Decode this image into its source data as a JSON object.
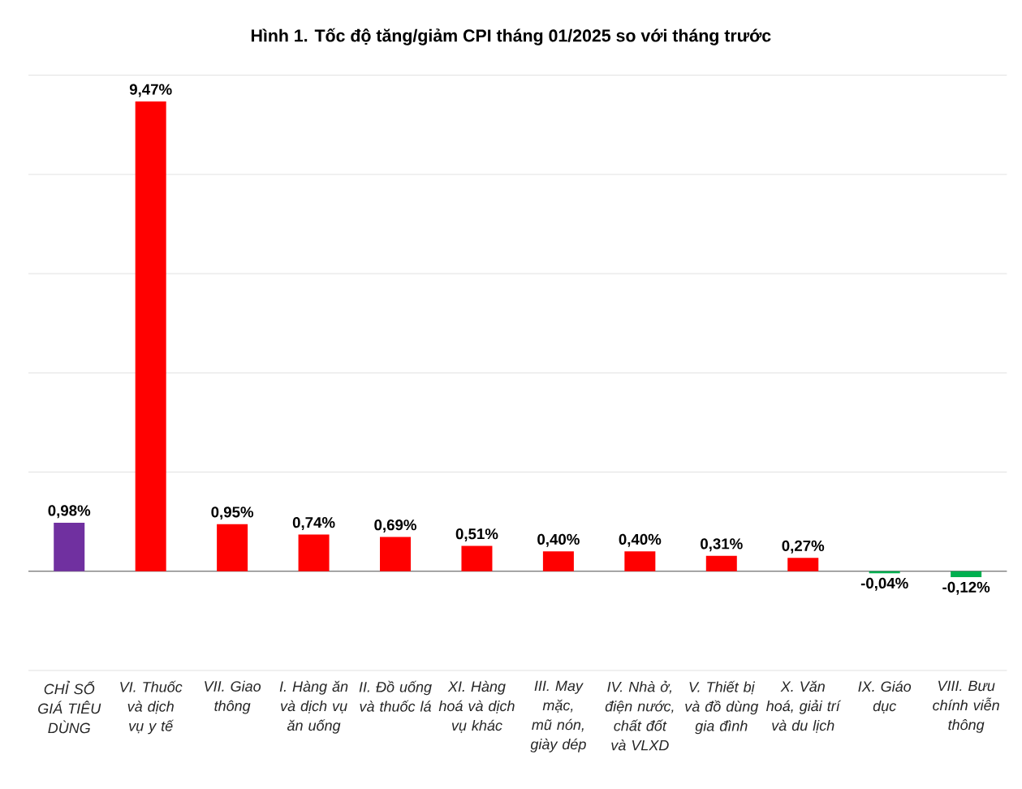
{
  "chart_data": {
    "type": "bar",
    "title": "Hình 1. Tốc độ tăng/giảm CPI tháng 01/2025 so với tháng trước",
    "categories": [
      "CHỈ SỐ GIÁ TIÊU DÙNG",
      "VI. Thuốc và dịch vụ y tế",
      "VII. Giao thông",
      "I. Hàng ăn và dịch vụ ăn uống",
      "II. Đồ uống và thuốc lá",
      "XI. Hàng hoá và dịch vụ khác",
      "III. May mặc, mũ nón, giày dép",
      "IV. Nhà ở, điện nước, chất đốt và VLXD",
      "V. Thiết bị và đồ dùng gia đình",
      "X. Văn hoá, giải trí và du lịch",
      "IX. Giáo dục",
      "VIII. Bưu chính viễn thông"
    ],
    "values": [
      0.98,
      9.47,
      0.95,
      0.74,
      0.69,
      0.51,
      0.4,
      0.4,
      0.31,
      0.27,
      -0.04,
      -0.12
    ],
    "colors": [
      "#7030a0",
      "#ff0000",
      "#ff0000",
      "#ff0000",
      "#ff0000",
      "#ff0000",
      "#ff0000",
      "#ff0000",
      "#ff0000",
      "#ff0000",
      "#00b050",
      "#00b050"
    ],
    "value_labels": [
      "0,98%",
      "9,47%",
      "0,95%",
      "0,74%",
      "0,69%",
      "0,51%",
      "0,40%",
      "0,40%",
      "0,31%",
      "0,27%",
      "-0,04%",
      "-0,12%"
    ],
    "ylim": [
      -2,
      10
    ],
    "yticks": [
      -2,
      0,
      2,
      4,
      6,
      8,
      10
    ],
    "grid": "y",
    "tick_labels": "x"
  }
}
